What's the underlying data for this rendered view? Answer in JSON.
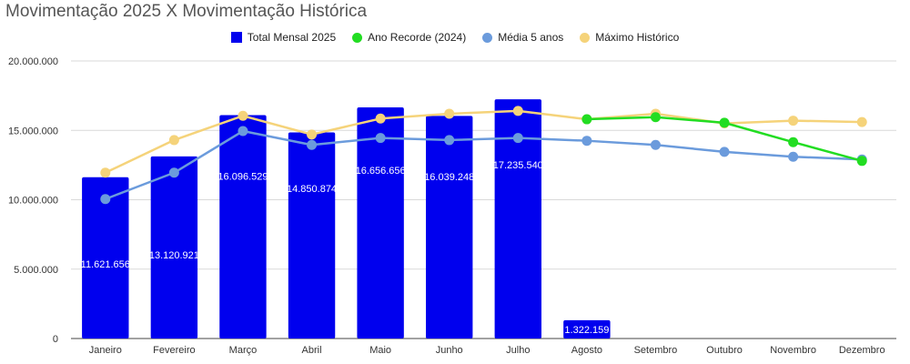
{
  "chart_data": {
    "type": "bar",
    "title": "Movimentação 2025 X Movimentação Histórica",
    "xlabel": "",
    "ylabel": "",
    "ylim": [
      0,
      20000000
    ],
    "yticks": [
      "0",
      "5.000.000",
      "10.000.000",
      "15.000.000",
      "20.000.000"
    ],
    "ytick_values": [
      0,
      5000000,
      10000000,
      15000000,
      20000000
    ],
    "grid": true,
    "legend_position": "top",
    "categories": [
      "Janeiro",
      "Fevereiro",
      "Março",
      "Abril",
      "Maio",
      "Junho",
      "Julho",
      "Agosto",
      "Setembro",
      "Outubro",
      "Novembro",
      "Dezembro"
    ],
    "series": [
      {
        "name": "Total Mensal 2025",
        "type": "bar",
        "color": "#0000ee",
        "values": [
          11621656,
          13120921,
          16096529,
          14850874,
          16656656,
          16039248,
          17235540,
          1322159,
          null,
          null,
          null,
          null
        ],
        "labels": [
          "11.621.656",
          "13.120.921",
          "16.096.529",
          "14.850.874",
          "16.656.656",
          "16.039.248",
          "17.235.540",
          "1.322.159",
          "",
          "",
          "",
          ""
        ]
      },
      {
        "name": "Ano Recorde (2024)",
        "type": "line",
        "color": "#22dd22",
        "values": [
          null,
          null,
          null,
          null,
          null,
          null,
          null,
          15800000,
          15950000,
          15550000,
          14150000,
          12800000
        ]
      },
      {
        "name": "Média 5 anos",
        "type": "line",
        "color": "#6b9bdc",
        "values": [
          10050000,
          11950000,
          14950000,
          13950000,
          14450000,
          14300000,
          14450000,
          14250000,
          13950000,
          13450000,
          13100000,
          12900000
        ]
      },
      {
        "name": "Máximo Histórico",
        "type": "line",
        "color": "#f5d37a",
        "values": [
          11950000,
          14300000,
          16050000,
          14700000,
          15850000,
          16200000,
          16400000,
          15800000,
          16200000,
          15500000,
          15700000,
          15600000
        ]
      }
    ]
  }
}
